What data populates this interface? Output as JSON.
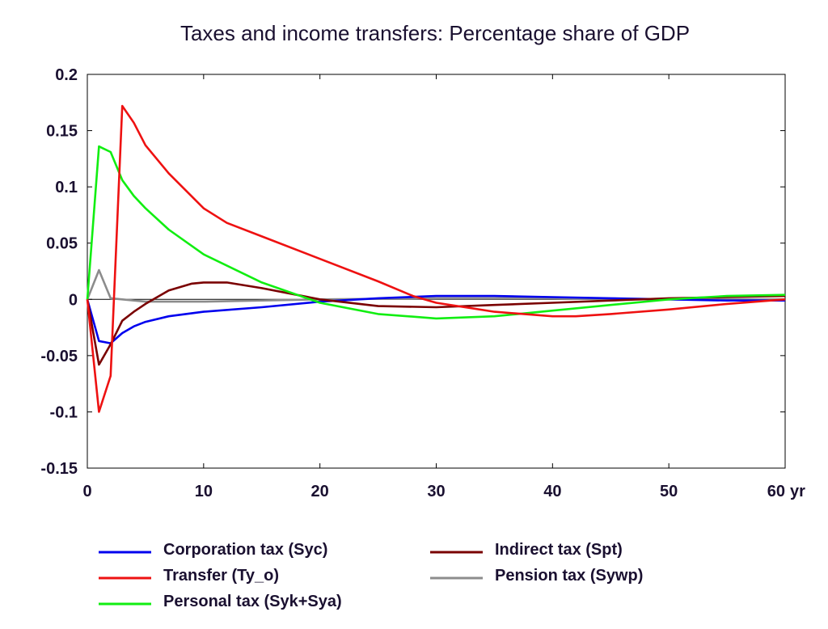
{
  "chart_data": {
    "type": "line",
    "title": "Taxes and income transfers: Percentage share of GDP",
    "xlabel": "",
    "ylabel": "",
    "x_unit_label": "yr",
    "xlim": [
      0,
      60
    ],
    "ylim": [
      -0.15,
      0.2
    ],
    "x_ticks": [
      0,
      10,
      20,
      30,
      40,
      50,
      60
    ],
    "x_tick_labels": [
      "0",
      "10",
      "20",
      "30",
      "40",
      "50",
      "60"
    ],
    "y_ticks": [
      0.2,
      0.15,
      0.1,
      0.05,
      0,
      -0.05,
      -0.1,
      -0.15
    ],
    "y_tick_labels": [
      "0.2",
      "0.15",
      "0.1",
      "0.05",
      "0",
      "-0.05",
      "-0.1",
      "-0.15"
    ],
    "grid": false,
    "legend_position": "bottom",
    "series": [
      {
        "name": "Corporation tax (Syc)",
        "color": "#0000ee",
        "points": [
          [
            0,
            0
          ],
          [
            1,
            -0.037
          ],
          [
            2,
            -0.039
          ],
          [
            3,
            -0.03
          ],
          [
            4,
            -0.024
          ],
          [
            5,
            -0.02
          ],
          [
            7,
            -0.015
          ],
          [
            10,
            -0.011
          ],
          [
            15,
            -0.007
          ],
          [
            20,
            -0.002
          ],
          [
            25,
            0.001
          ],
          [
            30,
            0.003
          ],
          [
            35,
            0.003
          ],
          [
            40,
            0.002
          ],
          [
            45,
            0.001
          ],
          [
            50,
            0
          ],
          [
            55,
            -0.001
          ],
          [
            60,
            -0.001
          ]
        ]
      },
      {
        "name": "Transfer (Ty_o)",
        "color": "#ee1111",
        "points": [
          [
            0,
            0
          ],
          [
            1,
            -0.1
          ],
          [
            2,
            -0.068
          ],
          [
            3,
            0.172
          ],
          [
            4,
            0.157
          ],
          [
            5,
            0.137
          ],
          [
            7,
            0.112
          ],
          [
            10,
            0.081
          ],
          [
            12,
            0.068
          ],
          [
            15,
            0.056
          ],
          [
            20,
            0.036
          ],
          [
            25,
            0.016
          ],
          [
            28,
            0.003
          ],
          [
            30,
            -0.003
          ],
          [
            35,
            -0.011
          ],
          [
            40,
            -0.015
          ],
          [
            42,
            -0.015
          ],
          [
            45,
            -0.013
          ],
          [
            50,
            -0.009
          ],
          [
            55,
            -0.004
          ],
          [
            60,
            0
          ]
        ]
      },
      {
        "name": "Personal tax (Syk+Sya)",
        "color": "#11ee11",
        "points": [
          [
            0,
            0
          ],
          [
            1,
            0.136
          ],
          [
            2,
            0.131
          ],
          [
            3,
            0.106
          ],
          [
            4,
            0.092
          ],
          [
            5,
            0.081
          ],
          [
            7,
            0.062
          ],
          [
            10,
            0.04
          ],
          [
            15,
            0.015
          ],
          [
            20,
            -0.003
          ],
          [
            25,
            -0.013
          ],
          [
            30,
            -0.017
          ],
          [
            35,
            -0.015
          ],
          [
            40,
            -0.01
          ],
          [
            45,
            -0.005
          ],
          [
            50,
            0
          ],
          [
            55,
            0.003
          ],
          [
            60,
            0.004
          ]
        ]
      },
      {
        "name": "Indirect tax (Spt)",
        "color": "#7a0000",
        "points": [
          [
            0,
            0
          ],
          [
            1,
            -0.058
          ],
          [
            2,
            -0.04
          ],
          [
            3,
            -0.019
          ],
          [
            4,
            -0.011
          ],
          [
            5,
            -0.004
          ],
          [
            7,
            0.008
          ],
          [
            9,
            0.014
          ],
          [
            10,
            0.015
          ],
          [
            12,
            0.015
          ],
          [
            15,
            0.01
          ],
          [
            18,
            0.004
          ],
          [
            20,
            0
          ],
          [
            25,
            -0.006
          ],
          [
            30,
            -0.007
          ],
          [
            35,
            -0.005
          ],
          [
            40,
            -0.003
          ],
          [
            45,
            -0.001
          ],
          [
            50,
            0.001
          ],
          [
            55,
            0.002
          ],
          [
            60,
            0.003
          ]
        ]
      },
      {
        "name": "Pension tax (Sywp)",
        "color": "#8c8c8c",
        "points": [
          [
            0,
            0
          ],
          [
            1,
            0.026
          ],
          [
            2,
            0.001
          ],
          [
            3,
            0
          ],
          [
            5,
            -0.002
          ],
          [
            10,
            -0.002
          ],
          [
            20,
            0
          ],
          [
            30,
            0.001
          ],
          [
            40,
            0.001
          ],
          [
            50,
            0
          ],
          [
            60,
            0
          ]
        ]
      }
    ],
    "legend_order": [
      0,
      3,
      1,
      4,
      2
    ]
  }
}
